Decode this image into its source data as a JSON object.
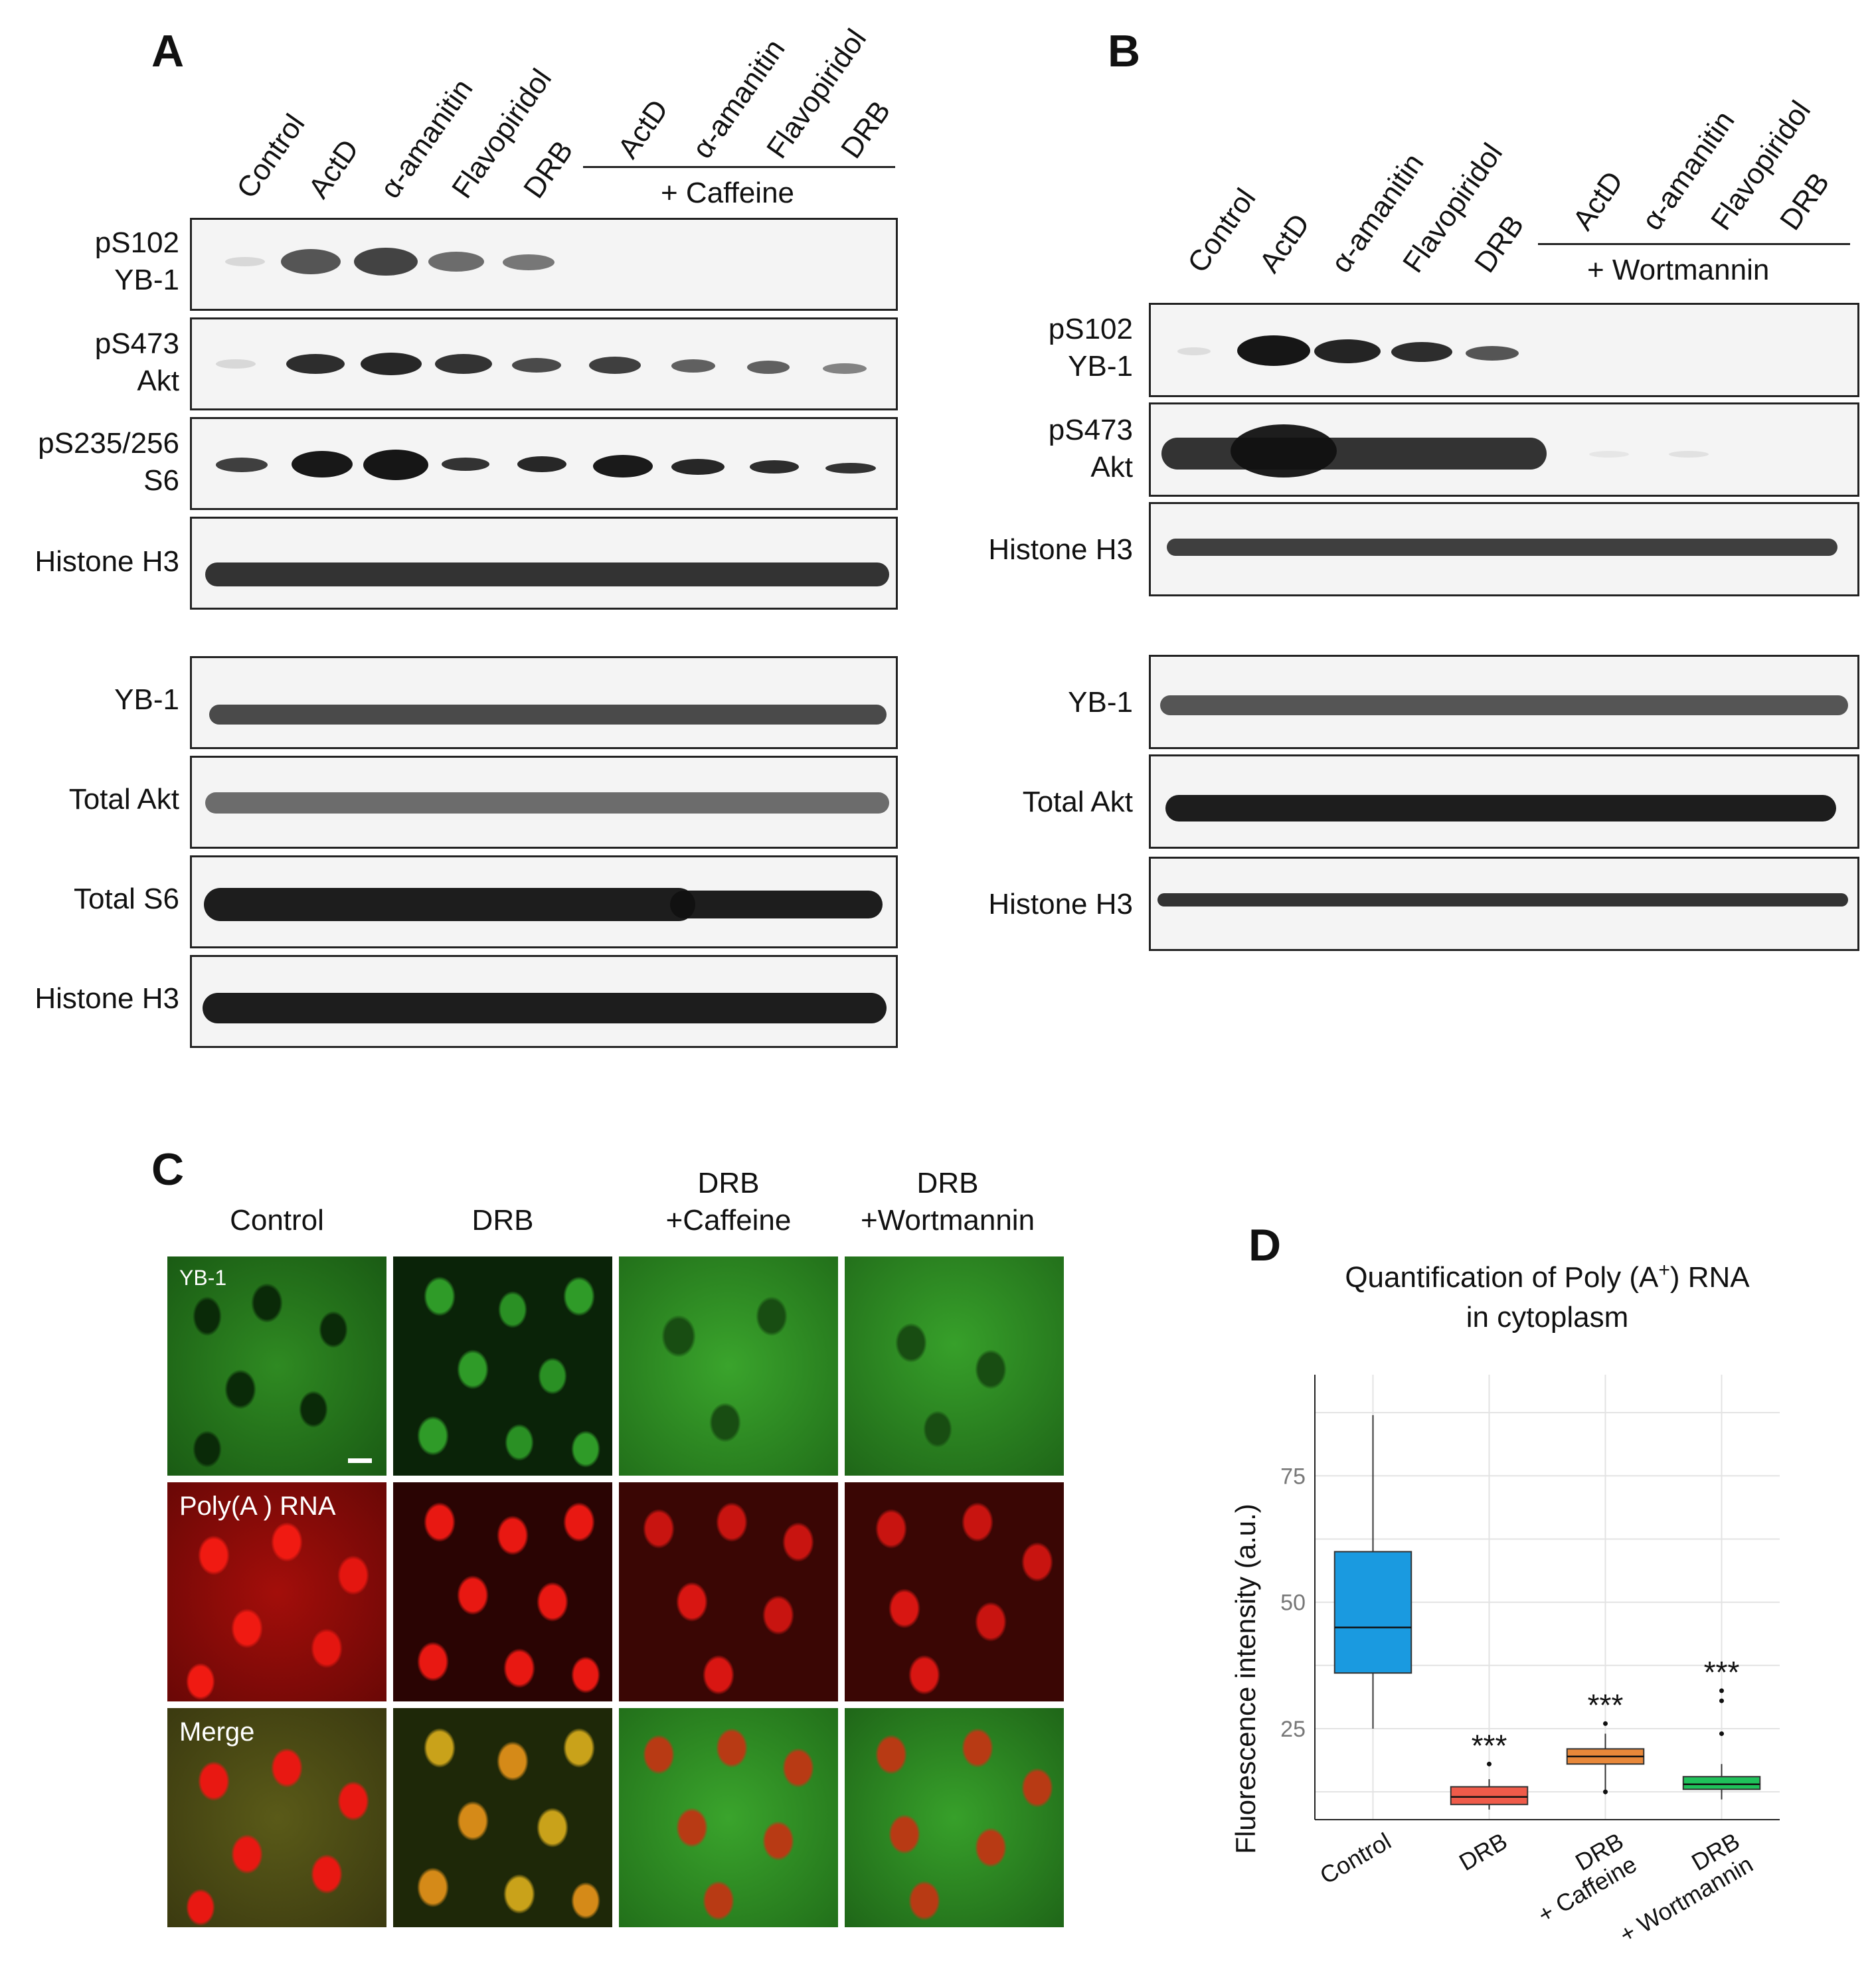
{
  "panels": {
    "a": "A",
    "b": "B",
    "c": "C",
    "d": "D"
  },
  "panel_a": {
    "lanes": [
      "Control",
      "ActD",
      "α-amanitin",
      "Flavopiridol",
      "DRB",
      "ActD",
      "α-amanitin",
      "Flavopiridol",
      "DRB"
    ],
    "group_label": "+ Caffeine",
    "rows": [
      {
        "line1": "pS102",
        "line2": "YB-1"
      },
      {
        "line1": "pS473",
        "line2": "Akt"
      },
      {
        "line1": "pS235/256",
        "line2": "S6"
      },
      {
        "line1": "Histone H3",
        "line2": ""
      },
      {
        "line1": "YB-1",
        "line2": ""
      },
      {
        "line1": "Total Akt",
        "line2": ""
      },
      {
        "line1": "Total S6",
        "line2": ""
      },
      {
        "line1": "Histone H3",
        "line2": ""
      }
    ]
  },
  "panel_b": {
    "lanes": [
      "Control",
      "ActD",
      "α-amanitin",
      "Flavopiridol",
      "DRB",
      "ActD",
      "α-amanitin",
      "Flavopiridol",
      "DRB"
    ],
    "group_label": "+ Wortmannin",
    "rows": [
      {
        "line1": "pS102",
        "line2": "YB-1"
      },
      {
        "line1": "pS473",
        "line2": "Akt"
      },
      {
        "line1": "Histone H3",
        "line2": ""
      },
      {
        "line1": "YB-1",
        "line2": ""
      },
      {
        "line1": "Total Akt",
        "line2": ""
      },
      {
        "line1": "Histone H3",
        "line2": ""
      }
    ]
  },
  "panel_c": {
    "columns": [
      {
        "line1": "Control",
        "line2": ""
      },
      {
        "line1": "DRB",
        "line2": ""
      },
      {
        "line1": "DRB",
        "line2": "+Caffeine"
      },
      {
        "line1": "DRB",
        "line2": "+Wortmannin"
      }
    ],
    "row_labels": [
      "YB-1",
      "Poly(A ) RNA",
      "Merge"
    ]
  },
  "chart_data": {
    "type": "box",
    "title_line1": "Quantification of Poly (A",
    "title_sup": "+",
    "title_rest": ") RNA",
    "title_line2": "in cytoplasm",
    "ylabel": "Fluorescence intensity (a.u.)",
    "yticks": [
      25,
      50,
      75
    ],
    "ylim": [
      7,
      95
    ],
    "categories": [
      {
        "line1": "Control",
        "line2": ""
      },
      {
        "line1": "DRB",
        "line2": ""
      },
      {
        "line1": "DRB",
        "line2": "+ Caffeine"
      },
      {
        "line1": "DRB",
        "line2": "+ Wortmannin"
      }
    ],
    "colors": [
      "#1a9ae0",
      "#ef5b4a",
      "#e8883a",
      "#1fc15a"
    ],
    "boxes": [
      {
        "whisker_low": 25,
        "q1": 36,
        "median": 45,
        "q3": 60,
        "whisker_high": 87,
        "outliers": [],
        "annotation": ""
      },
      {
        "whisker_low": 9,
        "q1": 10,
        "median": 11.5,
        "q3": 13.5,
        "whisker_high": 15,
        "outliers": [
          18
        ],
        "annotation": "***"
      },
      {
        "whisker_low": 12,
        "q1": 18,
        "median": 19.5,
        "q3": 21,
        "whisker_high": 24,
        "outliers": [
          26,
          12.5
        ],
        "annotation": "***"
      },
      {
        "whisker_low": 11,
        "q1": 13,
        "median": 14,
        "q3": 15.5,
        "whisker_high": 18,
        "outliers": [
          24,
          30.5,
          32.5
        ],
        "annotation": "***"
      }
    ]
  }
}
